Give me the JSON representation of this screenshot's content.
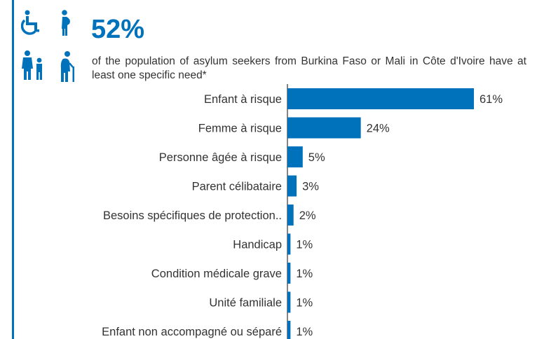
{
  "header": {
    "percentage": "52%",
    "description": "of the population of asylum seekers from Burkina Faso or Mali in Côte d'Ivoire have at least one specific need*"
  },
  "icons": [
    "wheelchair-icon",
    "pregnant-woman-icon",
    "adult-child-icon",
    "elderly-person-icon"
  ],
  "colors": {
    "accent": "#0072bc",
    "text": "#333333"
  },
  "chart_data": {
    "type": "bar",
    "orientation": "horizontal",
    "categories": [
      "Enfant à risque",
      "Femme à risque",
      "Personne âgée à risque",
      "Parent célibataire",
      "Besoins spécifiques de protection..",
      "Handicap",
      "Condition médicale grave",
      "Unité familiale",
      "Enfant non accompagné ou séparé"
    ],
    "values": [
      61,
      24,
      5,
      3,
      2,
      1,
      1,
      1,
      1
    ],
    "value_labels": [
      "61%",
      "24%",
      "5%",
      "3%",
      "2%",
      "1%",
      "1%",
      "1%",
      "1%"
    ],
    "xlim": [
      0,
      61
    ],
    "grid": false,
    "legend": "none"
  }
}
